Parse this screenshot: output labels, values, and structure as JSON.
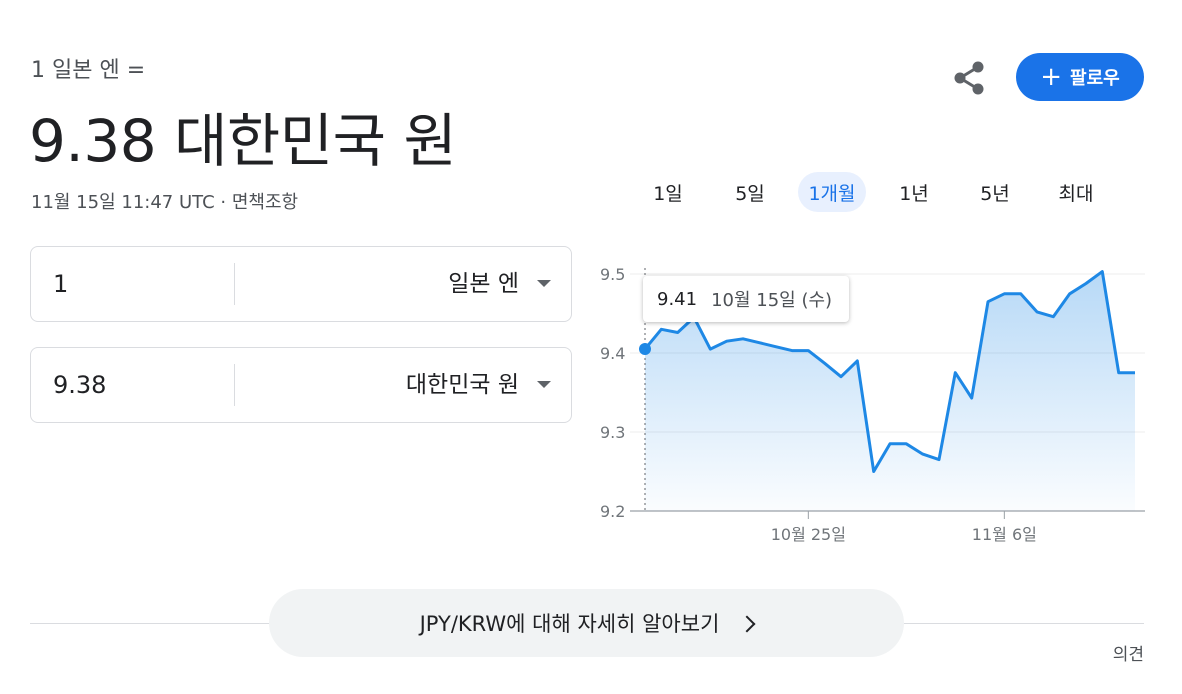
{
  "header": {
    "subtitle": "1 일본 엔 =",
    "result": "9.38 대한민국 원",
    "timestamp": "11월 15일 11:47 UTC",
    "dot": "·",
    "disclaimer": "면책조항"
  },
  "actions": {
    "share_icon": "share-icon",
    "follow_plus": "+",
    "follow_label": "팔로우",
    "accent": "#1a73e8"
  },
  "tabs": [
    {
      "label": "1일",
      "active": false
    },
    {
      "label": "5일",
      "active": false
    },
    {
      "label": "1개월",
      "active": true
    },
    {
      "label": "1년",
      "active": false
    },
    {
      "label": "5년",
      "active": false
    },
    {
      "label": "최대",
      "active": false
    }
  ],
  "converter": {
    "from": {
      "value": "1",
      "currency": "일본 엔"
    },
    "to": {
      "value": "9.38",
      "currency": "대한민국 원"
    }
  },
  "tooltip": {
    "value": "9.41",
    "date": "10월 15일 (수)"
  },
  "chart_data": {
    "type": "area",
    "color": "#1e88e5",
    "ylim": [
      9.2,
      9.5
    ],
    "yticks": [
      "9.5",
      "9.4",
      "9.3",
      "9.2"
    ],
    "ytick_values": [
      9.5,
      9.4,
      9.3,
      9.2
    ],
    "xticks": [
      {
        "label": "10월 25일",
        "index": 10
      },
      {
        "label": "11월 6일",
        "index": 22
      }
    ],
    "values": [
      9.405,
      9.43,
      9.426,
      9.445,
      9.405,
      9.415,
      9.418,
      9.413,
      9.408,
      9.403,
      9.403,
      9.387,
      9.37,
      9.39,
      9.25,
      9.285,
      9.285,
      9.272,
      9.265,
      9.375,
      9.343,
      9.465,
      9.475,
      9.475,
      9.452,
      9.446,
      9.475,
      9.488,
      9.503,
      9.375,
      9.375
    ],
    "highlight_index": 0
  },
  "more_button": {
    "label": "JPY/KRW에 대해 자세히 알아보기"
  },
  "feedback": "의견"
}
